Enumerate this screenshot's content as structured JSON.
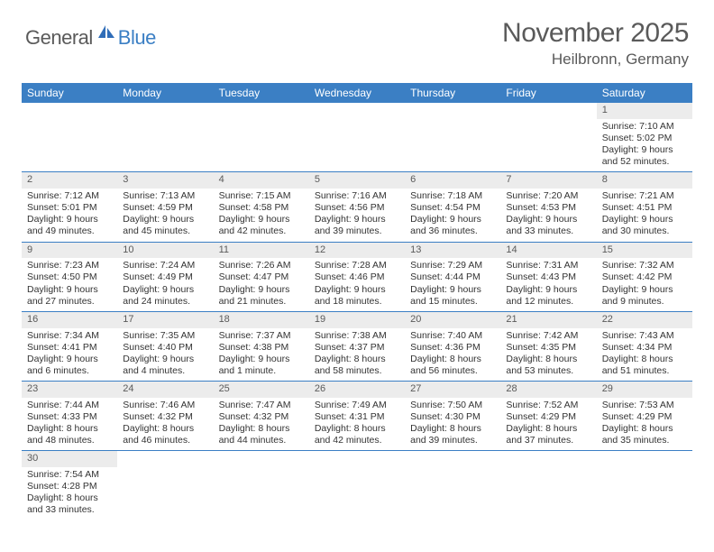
{
  "logo": {
    "text1": "General",
    "text2": "Blue"
  },
  "title": "November 2025",
  "location": "Heilbronn, Germany",
  "colors": {
    "header_bg": "#3b7fc4",
    "header_text": "#ffffff",
    "daynum_bg": "#ececec",
    "text": "#333333",
    "title_gray": "#5a5a5a",
    "week_border": "#3b7fc4"
  },
  "day_headers": [
    "Sunday",
    "Monday",
    "Tuesday",
    "Wednesday",
    "Thursday",
    "Friday",
    "Saturday"
  ],
  "weeks": [
    [
      null,
      null,
      null,
      null,
      null,
      null,
      {
        "n": "1",
        "sr": "Sunrise: 7:10 AM",
        "ss": "Sunset: 5:02 PM",
        "dl1": "Daylight: 9 hours",
        "dl2": "and 52 minutes."
      }
    ],
    [
      {
        "n": "2",
        "sr": "Sunrise: 7:12 AM",
        "ss": "Sunset: 5:01 PM",
        "dl1": "Daylight: 9 hours",
        "dl2": "and 49 minutes."
      },
      {
        "n": "3",
        "sr": "Sunrise: 7:13 AM",
        "ss": "Sunset: 4:59 PM",
        "dl1": "Daylight: 9 hours",
        "dl2": "and 45 minutes."
      },
      {
        "n": "4",
        "sr": "Sunrise: 7:15 AM",
        "ss": "Sunset: 4:58 PM",
        "dl1": "Daylight: 9 hours",
        "dl2": "and 42 minutes."
      },
      {
        "n": "5",
        "sr": "Sunrise: 7:16 AM",
        "ss": "Sunset: 4:56 PM",
        "dl1": "Daylight: 9 hours",
        "dl2": "and 39 minutes."
      },
      {
        "n": "6",
        "sr": "Sunrise: 7:18 AM",
        "ss": "Sunset: 4:54 PM",
        "dl1": "Daylight: 9 hours",
        "dl2": "and 36 minutes."
      },
      {
        "n": "7",
        "sr": "Sunrise: 7:20 AM",
        "ss": "Sunset: 4:53 PM",
        "dl1": "Daylight: 9 hours",
        "dl2": "and 33 minutes."
      },
      {
        "n": "8",
        "sr": "Sunrise: 7:21 AM",
        "ss": "Sunset: 4:51 PM",
        "dl1": "Daylight: 9 hours",
        "dl2": "and 30 minutes."
      }
    ],
    [
      {
        "n": "9",
        "sr": "Sunrise: 7:23 AM",
        "ss": "Sunset: 4:50 PM",
        "dl1": "Daylight: 9 hours",
        "dl2": "and 27 minutes."
      },
      {
        "n": "10",
        "sr": "Sunrise: 7:24 AM",
        "ss": "Sunset: 4:49 PM",
        "dl1": "Daylight: 9 hours",
        "dl2": "and 24 minutes."
      },
      {
        "n": "11",
        "sr": "Sunrise: 7:26 AM",
        "ss": "Sunset: 4:47 PM",
        "dl1": "Daylight: 9 hours",
        "dl2": "and 21 minutes."
      },
      {
        "n": "12",
        "sr": "Sunrise: 7:28 AM",
        "ss": "Sunset: 4:46 PM",
        "dl1": "Daylight: 9 hours",
        "dl2": "and 18 minutes."
      },
      {
        "n": "13",
        "sr": "Sunrise: 7:29 AM",
        "ss": "Sunset: 4:44 PM",
        "dl1": "Daylight: 9 hours",
        "dl2": "and 15 minutes."
      },
      {
        "n": "14",
        "sr": "Sunrise: 7:31 AM",
        "ss": "Sunset: 4:43 PM",
        "dl1": "Daylight: 9 hours",
        "dl2": "and 12 minutes."
      },
      {
        "n": "15",
        "sr": "Sunrise: 7:32 AM",
        "ss": "Sunset: 4:42 PM",
        "dl1": "Daylight: 9 hours",
        "dl2": "and 9 minutes."
      }
    ],
    [
      {
        "n": "16",
        "sr": "Sunrise: 7:34 AM",
        "ss": "Sunset: 4:41 PM",
        "dl1": "Daylight: 9 hours",
        "dl2": "and 6 minutes."
      },
      {
        "n": "17",
        "sr": "Sunrise: 7:35 AM",
        "ss": "Sunset: 4:40 PM",
        "dl1": "Daylight: 9 hours",
        "dl2": "and 4 minutes."
      },
      {
        "n": "18",
        "sr": "Sunrise: 7:37 AM",
        "ss": "Sunset: 4:38 PM",
        "dl1": "Daylight: 9 hours",
        "dl2": "and 1 minute."
      },
      {
        "n": "19",
        "sr": "Sunrise: 7:38 AM",
        "ss": "Sunset: 4:37 PM",
        "dl1": "Daylight: 8 hours",
        "dl2": "and 58 minutes."
      },
      {
        "n": "20",
        "sr": "Sunrise: 7:40 AM",
        "ss": "Sunset: 4:36 PM",
        "dl1": "Daylight: 8 hours",
        "dl2": "and 56 minutes."
      },
      {
        "n": "21",
        "sr": "Sunrise: 7:42 AM",
        "ss": "Sunset: 4:35 PM",
        "dl1": "Daylight: 8 hours",
        "dl2": "and 53 minutes."
      },
      {
        "n": "22",
        "sr": "Sunrise: 7:43 AM",
        "ss": "Sunset: 4:34 PM",
        "dl1": "Daylight: 8 hours",
        "dl2": "and 51 minutes."
      }
    ],
    [
      {
        "n": "23",
        "sr": "Sunrise: 7:44 AM",
        "ss": "Sunset: 4:33 PM",
        "dl1": "Daylight: 8 hours",
        "dl2": "and 48 minutes."
      },
      {
        "n": "24",
        "sr": "Sunrise: 7:46 AM",
        "ss": "Sunset: 4:32 PM",
        "dl1": "Daylight: 8 hours",
        "dl2": "and 46 minutes."
      },
      {
        "n": "25",
        "sr": "Sunrise: 7:47 AM",
        "ss": "Sunset: 4:32 PM",
        "dl1": "Daylight: 8 hours",
        "dl2": "and 44 minutes."
      },
      {
        "n": "26",
        "sr": "Sunrise: 7:49 AM",
        "ss": "Sunset: 4:31 PM",
        "dl1": "Daylight: 8 hours",
        "dl2": "and 42 minutes."
      },
      {
        "n": "27",
        "sr": "Sunrise: 7:50 AM",
        "ss": "Sunset: 4:30 PM",
        "dl1": "Daylight: 8 hours",
        "dl2": "and 39 minutes."
      },
      {
        "n": "28",
        "sr": "Sunrise: 7:52 AM",
        "ss": "Sunset: 4:29 PM",
        "dl1": "Daylight: 8 hours",
        "dl2": "and 37 minutes."
      },
      {
        "n": "29",
        "sr": "Sunrise: 7:53 AM",
        "ss": "Sunset: 4:29 PM",
        "dl1": "Daylight: 8 hours",
        "dl2": "and 35 minutes."
      }
    ],
    [
      {
        "n": "30",
        "sr": "Sunrise: 7:54 AM",
        "ss": "Sunset: 4:28 PM",
        "dl1": "Daylight: 8 hours",
        "dl2": "and 33 minutes."
      },
      null,
      null,
      null,
      null,
      null,
      null
    ]
  ]
}
